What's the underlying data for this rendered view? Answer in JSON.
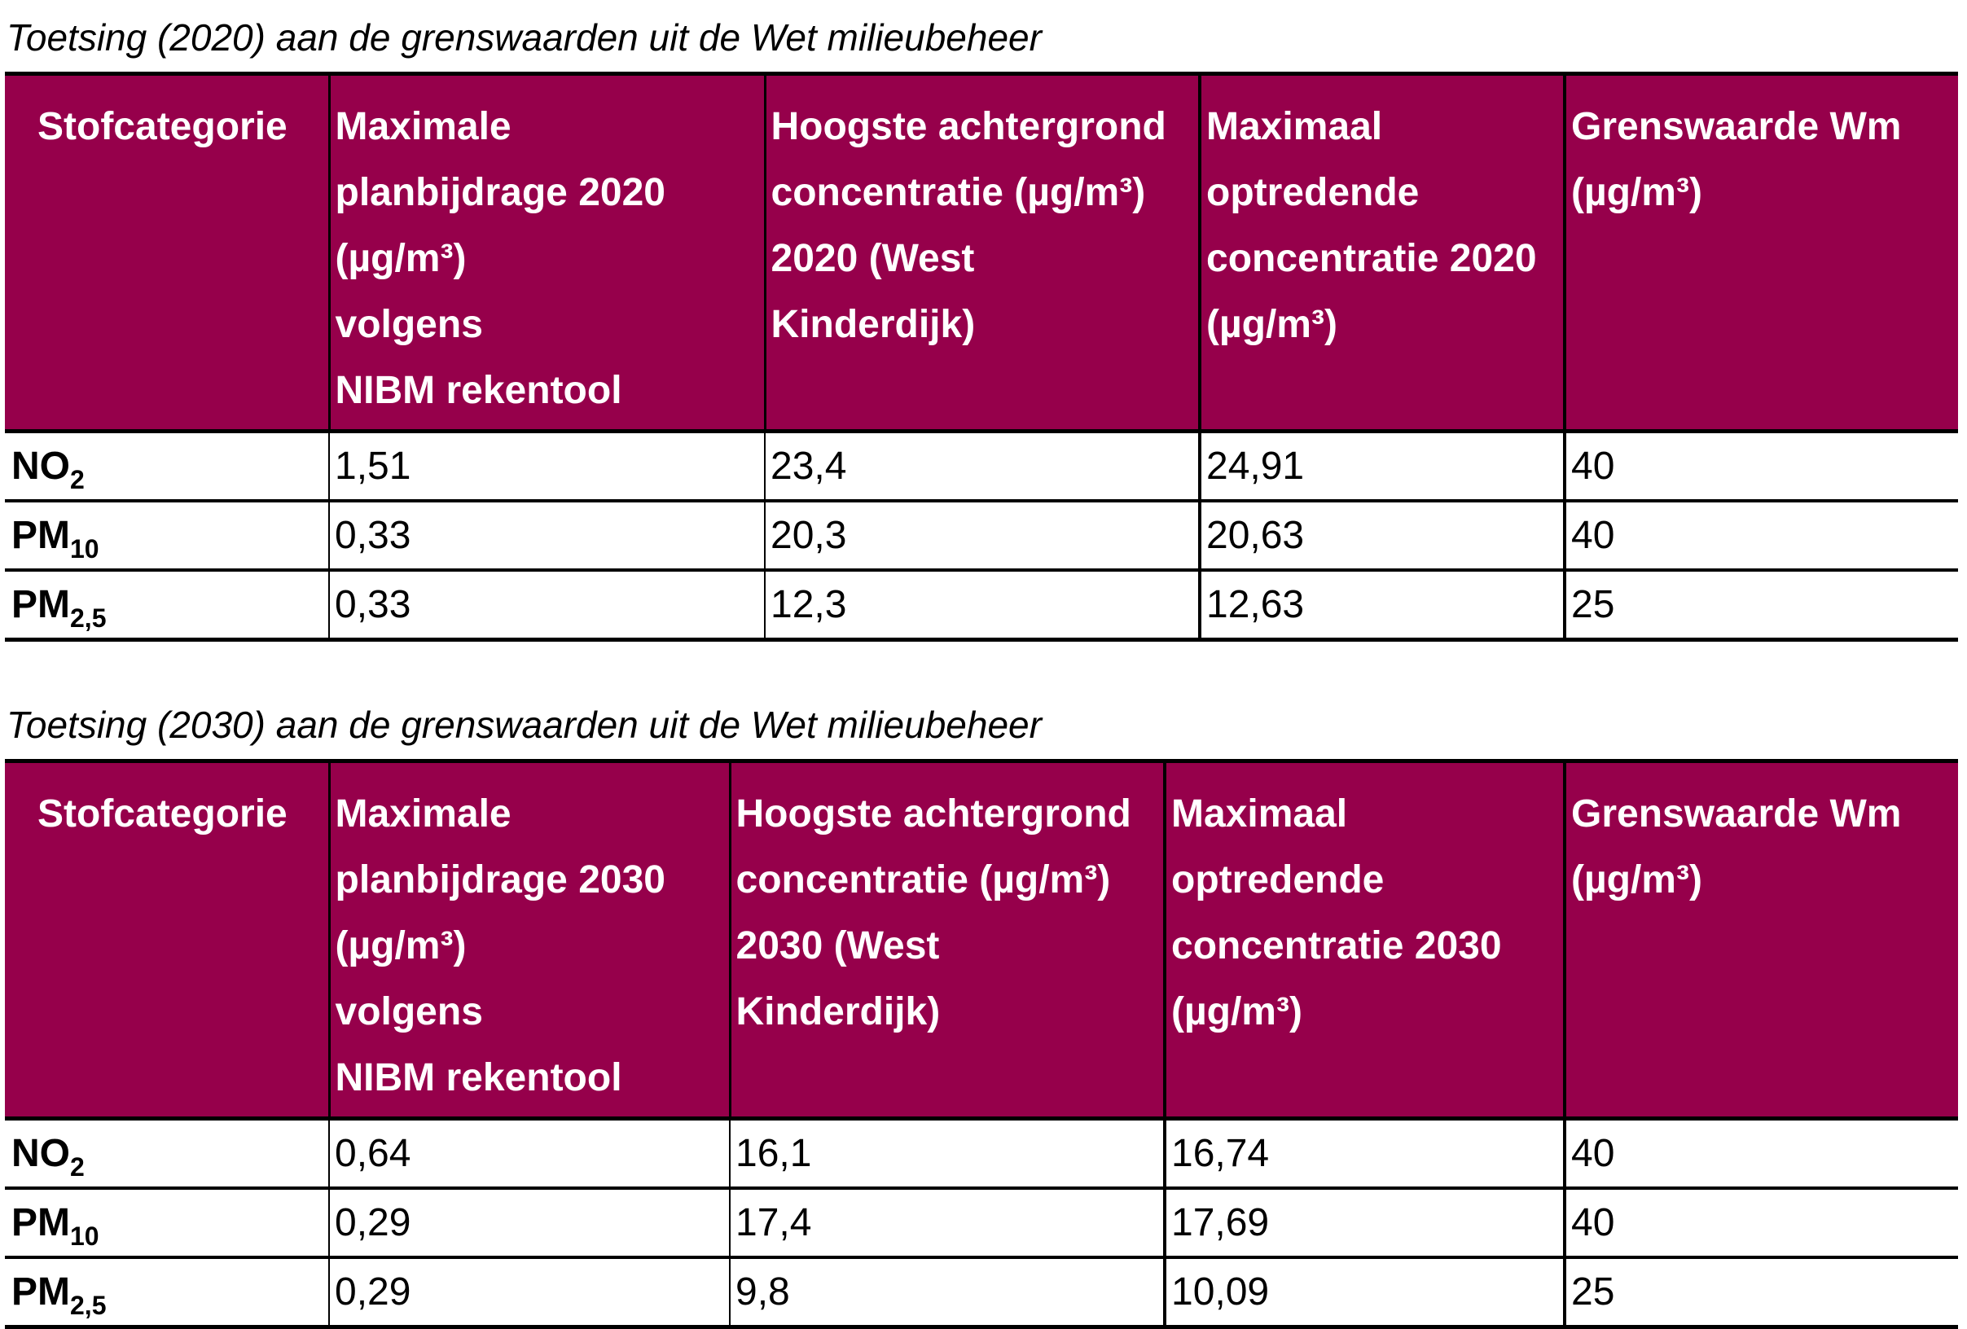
{
  "tables": [
    {
      "caption": "Toetsing (2020) aan de grenswaarden uit de Wet milieubeheer",
      "headers": [
        [
          "Stofcategorie"
        ],
        [
          "Maximale",
          "planbijdrage 2020",
          "(µg/m³)",
          "volgens",
          "NIBM rekentool"
        ],
        [
          "Hoogste achtergrond",
          "concentratie (µg/m³)",
          "2020 (West",
          "Kinderdijk)"
        ],
        [
          "Maximaal",
          "optredende",
          "concentratie 2020",
          "(µg/m³)"
        ],
        [
          "Grenswaarde Wm",
          "(µg/m³)"
        ]
      ],
      "rows": [
        {
          "substance": "NO",
          "sub": "2",
          "values": [
            "1,51",
            "23,4",
            "24,91",
            "40"
          ]
        },
        {
          "substance": "PM",
          "sub": "10",
          "values": [
            "0,33",
            "20,3",
            "20,63",
            "40"
          ]
        },
        {
          "substance": "PM",
          "sub": "2,5",
          "values": [
            "0,33",
            "12,3",
            "12,63",
            "25"
          ]
        }
      ]
    },
    {
      "caption": "Toetsing (2030) aan de grenswaarden uit de Wet milieubeheer",
      "headers": [
        [
          "Stofcategorie"
        ],
        [
          "Maximale",
          "planbijdrage 2030",
          "(µg/m³)",
          "volgens",
          "NIBM rekentool"
        ],
        [
          "Hoogste achtergrond",
          "concentratie (µg/m³)",
          "2030 (West",
          "Kinderdijk)"
        ],
        [
          "Maximaal",
          "optredende",
          "concentratie 2030",
          "(µg/m³)"
        ],
        [
          "Grenswaarde Wm",
          "(µg/m³)"
        ]
      ],
      "rows": [
        {
          "substance": "NO",
          "sub": "2",
          "values": [
            "0,64",
            "16,1",
            "16,74",
            "40"
          ]
        },
        {
          "substance": "PM",
          "sub": "10",
          "values": [
            "0,29",
            "17,4",
            "17,69",
            "40"
          ]
        },
        {
          "substance": "PM",
          "sub": "2,5",
          "values": [
            "0,29",
            "9,8",
            "10,09",
            "25"
          ]
        }
      ]
    }
  ]
}
